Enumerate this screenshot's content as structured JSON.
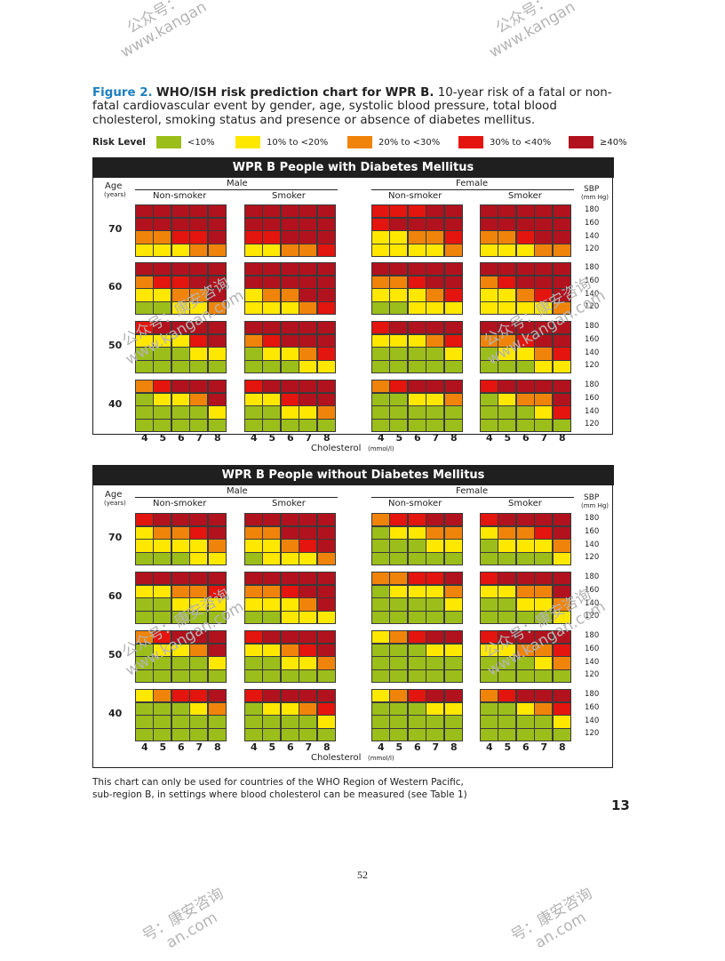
{
  "watermarks": {
    "top_left": "公众号：\nwww.kangan",
    "top_right": "公众号：\nwww.kangan",
    "mid_left_1": "公众号：康安咨询\nwww.kangan.com",
    "mid_right_1": "公众号：康安咨询\nwww.kangan.com",
    "mid_left_2": "公众号：康安咨询\nwww.kangan.com",
    "mid_right_2": "公众号：康安咨询\nwww.kangan.com",
    "bottom_left": "号：康安咨询\nan.com",
    "bottom_right": "号：康安咨询\nan.com"
  },
  "caption": {
    "figure_label": "Figure 2.",
    "title": "WHO/ISH risk prediction chart for WPR B.",
    "body": "10-year risk of a fatal or non-fatal cardiovascular event by gender, age, systolic blood pressure, total blood cholesterol, smoking status and presence or absence of diabetes mellitus."
  },
  "legend": {
    "title": "Risk Level",
    "items": [
      {
        "label": "<10%",
        "color": "#9cbe1a"
      },
      {
        "label": "10% to <20%",
        "color": "#ffe800"
      },
      {
        "label": "20% to <30%",
        "color": "#f0840a"
      },
      {
        "label": "30% to <40%",
        "color": "#e4140e"
      },
      {
        "label": "≥40%",
        "color": "#b2121e"
      }
    ]
  },
  "axis_labels": {
    "age": "Age",
    "age_unit": "(years)",
    "sbp": "SBP",
    "sbp_unit": "(mm Hg)",
    "cholesterol": "Cholesterol",
    "cholesterol_unit": "(mmol/l)",
    "male": "Male",
    "female": "Female",
    "non_smoker": "Non-smoker",
    "smoker": "Smoker"
  },
  "notes": {
    "line1": "This chart can only be used for countries of the WHO Region of Western Pacific,",
    "line2": "sub-region B, in settings where blood cholesterol can be measured (see Table 1)"
  },
  "page_number": "52",
  "page_part": "13",
  "chart_data": {
    "type": "heatmap",
    "title": "WHO/ISH risk prediction chart for WPR B",
    "value_legend": {
      "1": "<10%",
      "2": "10% to <20%",
      "3": "20% to <30%",
      "4": "30% to <40%",
      "5": "≥40%"
    },
    "ages": [
      70,
      60,
      50,
      40
    ],
    "sbp_rows": [
      180,
      160,
      140,
      120
    ],
    "cholesterol_cols": [
      4,
      5,
      6,
      7,
      8
    ],
    "groups": [
      "Male Non-smoker",
      "Male Smoker",
      "Female Non-smoker",
      "Female Smoker"
    ],
    "panels": [
      {
        "title": "WPR B People with Diabetes Mellitus",
        "grids": [
          [
            [
              [
                5,
                5,
                5,
                5,
                5
              ],
              [
                5,
                5,
                5,
                5,
                5
              ],
              [
                3,
                3,
                4,
                4,
                5
              ],
              [
                2,
                2,
                2,
                3,
                3
              ]
            ],
            [
              [
                5,
                5,
                5,
                5,
                5
              ],
              [
                5,
                5,
                5,
                5,
                5
              ],
              [
                4,
                4,
                5,
                5,
                5
              ],
              [
                2,
                2,
                3,
                3,
                4
              ]
            ],
            [
              [
                4,
                4,
                4,
                5,
                5
              ],
              [
                4,
                5,
                5,
                5,
                5
              ],
              [
                2,
                2,
                3,
                3,
                4
              ],
              [
                2,
                2,
                2,
                2,
                3
              ]
            ],
            [
              [
                5,
                5,
                5,
                5,
                5
              ],
              [
                5,
                5,
                5,
                5,
                5
              ],
              [
                3,
                3,
                4,
                5,
                5
              ],
              [
                2,
                2,
                2,
                3,
                3
              ]
            ]
          ],
          [
            [
              [
                5,
                5,
                5,
                5,
                5
              ],
              [
                3,
                4,
                4,
                5,
                5
              ],
              [
                2,
                2,
                3,
                3,
                5
              ],
              [
                1,
                1,
                2,
                2,
                3
              ]
            ],
            [
              [
                5,
                5,
                5,
                5,
                5
              ],
              [
                5,
                5,
                5,
                5,
                5
              ],
              [
                2,
                3,
                3,
                5,
                5
              ],
              [
                2,
                2,
                2,
                3,
                4
              ]
            ],
            [
              [
                5,
                5,
                5,
                5,
                5
              ],
              [
                3,
                3,
                4,
                5,
                5
              ],
              [
                2,
                2,
                2,
                3,
                4
              ],
              [
                1,
                1,
                2,
                2,
                2
              ]
            ],
            [
              [
                5,
                5,
                5,
                5,
                5
              ],
              [
                3,
                4,
                5,
                5,
                5
              ],
              [
                2,
                2,
                3,
                4,
                5
              ],
              [
                2,
                2,
                2,
                2,
                3
              ]
            ]
          ],
          [
            [
              [
                4,
                5,
                5,
                5,
                5
              ],
              [
                2,
                2,
                2,
                4,
                5
              ],
              [
                1,
                1,
                1,
                2,
                2
              ],
              [
                1,
                1,
                1,
                1,
                1
              ]
            ],
            [
              [
                5,
                5,
                5,
                5,
                5
              ],
              [
                3,
                4,
                5,
                5,
                5
              ],
              [
                1,
                2,
                2,
                3,
                4
              ],
              [
                1,
                1,
                1,
                2,
                2
              ]
            ],
            [
              [
                4,
                5,
                5,
                5,
                5
              ],
              [
                2,
                2,
                2,
                3,
                4
              ],
              [
                1,
                1,
                1,
                1,
                2
              ],
              [
                1,
                1,
                1,
                1,
                1
              ]
            ],
            [
              [
                5,
                5,
                5,
                5,
                5
              ],
              [
                3,
                3,
                4,
                5,
                5
              ],
              [
                1,
                2,
                2,
                3,
                4
              ],
              [
                1,
                1,
                1,
                2,
                2
              ]
            ]
          ],
          [
            [
              [
                3,
                4,
                5,
                5,
                5
              ],
              [
                1,
                2,
                2,
                3,
                5
              ],
              [
                1,
                1,
                1,
                1,
                2
              ],
              [
                1,
                1,
                1,
                1,
                1
              ]
            ],
            [
              [
                4,
                5,
                5,
                5,
                5
              ],
              [
                2,
                2,
                4,
                5,
                5
              ],
              [
                1,
                1,
                2,
                2,
                3
              ],
              [
                1,
                1,
                1,
                1,
                1
              ]
            ],
            [
              [
                3,
                4,
                5,
                5,
                5
              ],
              [
                1,
                1,
                2,
                2,
                3
              ],
              [
                1,
                1,
                1,
                1,
                1
              ],
              [
                1,
                1,
                1,
                1,
                1
              ]
            ],
            [
              [
                4,
                5,
                5,
                5,
                5
              ],
              [
                1,
                2,
                3,
                3,
                5
              ],
              [
                1,
                1,
                1,
                2,
                4
              ],
              [
                1,
                1,
                1,
                1,
                1
              ]
            ]
          ]
        ]
      },
      {
        "title": "WPR B People without Diabetes Mellitus",
        "grids": [
          [
            [
              [
                4,
                5,
                5,
                5,
                5
              ],
              [
                2,
                3,
                3,
                4,
                5
              ],
              [
                2,
                2,
                2,
                2,
                3
              ],
              [
                1,
                1,
                1,
                2,
                2
              ]
            ],
            [
              [
                5,
                5,
                5,
                5,
                5
              ],
              [
                3,
                3,
                5,
                5,
                5
              ],
              [
                2,
                2,
                3,
                4,
                5
              ],
              [
                1,
                2,
                2,
                2,
                3
              ]
            ],
            [
              [
                3,
                4,
                4,
                5,
                5
              ],
              [
                1,
                2,
                2,
                3,
                3
              ],
              [
                1,
                1,
                1,
                2,
                2
              ],
              [
                1,
                1,
                1,
                1,
                1
              ]
            ],
            [
              [
                4,
                5,
                5,
                5,
                5
              ],
              [
                2,
                3,
                3,
                4,
                5
              ],
              [
                1,
                2,
                2,
                2,
                3
              ],
              [
                1,
                1,
                1,
                1,
                2
              ]
            ]
          ],
          [
            [
              [
                5,
                5,
                5,
                5,
                5
              ],
              [
                2,
                2,
                3,
                3,
                4
              ],
              [
                1,
                1,
                2,
                2,
                2
              ],
              [
                1,
                1,
                1,
                1,
                1
              ]
            ],
            [
              [
                5,
                5,
                5,
                5,
                5
              ],
              [
                3,
                3,
                4,
                5,
                5
              ],
              [
                2,
                2,
                2,
                3,
                5
              ],
              [
                1,
                1,
                2,
                2,
                2
              ]
            ],
            [
              [
                3,
                3,
                4,
                4,
                5
              ],
              [
                1,
                2,
                2,
                2,
                3
              ],
              [
                1,
                1,
                1,
                1,
                2
              ],
              [
                1,
                1,
                1,
                1,
                1
              ]
            ],
            [
              [
                4,
                5,
                5,
                5,
                5
              ],
              [
                2,
                2,
                3,
                3,
                5
              ],
              [
                1,
                1,
                2,
                2,
                3
              ],
              [
                1,
                1,
                1,
                1,
                2
              ]
            ]
          ],
          [
            [
              [
                3,
                4,
                5,
                5,
                5
              ],
              [
                1,
                2,
                2,
                3,
                5
              ],
              [
                1,
                1,
                1,
                1,
                2
              ],
              [
                1,
                1,
                1,
                1,
                1
              ]
            ],
            [
              [
                4,
                5,
                5,
                5,
                5
              ],
              [
                2,
                2,
                3,
                4,
                5
              ],
              [
                1,
                1,
                2,
                2,
                3
              ],
              [
                1,
                1,
                1,
                1,
                1
              ]
            ],
            [
              [
                2,
                3,
                4,
                5,
                5
              ],
              [
                1,
                1,
                1,
                2,
                2
              ],
              [
                1,
                1,
                1,
                1,
                1
              ],
              [
                1,
                1,
                1,
                1,
                1
              ]
            ],
            [
              [
                4,
                5,
                5,
                5,
                5
              ],
              [
                2,
                2,
                3,
                3,
                4
              ],
              [
                1,
                1,
                1,
                2,
                3
              ],
              [
                1,
                1,
                1,
                1,
                1
              ]
            ]
          ],
          [
            [
              [
                2,
                3,
                4,
                4,
                5
              ],
              [
                1,
                1,
                1,
                2,
                3
              ],
              [
                1,
                1,
                1,
                1,
                1
              ],
              [
                1,
                1,
                1,
                1,
                1
              ]
            ],
            [
              [
                4,
                5,
                5,
                5,
                5
              ],
              [
                1,
                2,
                2,
                3,
                4
              ],
              [
                1,
                1,
                1,
                1,
                2
              ],
              [
                1,
                1,
                1,
                1,
                1
              ]
            ],
            [
              [
                2,
                3,
                4,
                5,
                5
              ],
              [
                1,
                1,
                1,
                2,
                2
              ],
              [
                1,
                1,
                1,
                1,
                1
              ],
              [
                1,
                1,
                1,
                1,
                1
              ]
            ],
            [
              [
                3,
                4,
                5,
                5,
                5
              ],
              [
                1,
                1,
                2,
                3,
                4
              ],
              [
                1,
                1,
                1,
                1,
                2
              ],
              [
                1,
                1,
                1,
                1,
                1
              ]
            ]
          ]
        ]
      }
    ]
  }
}
